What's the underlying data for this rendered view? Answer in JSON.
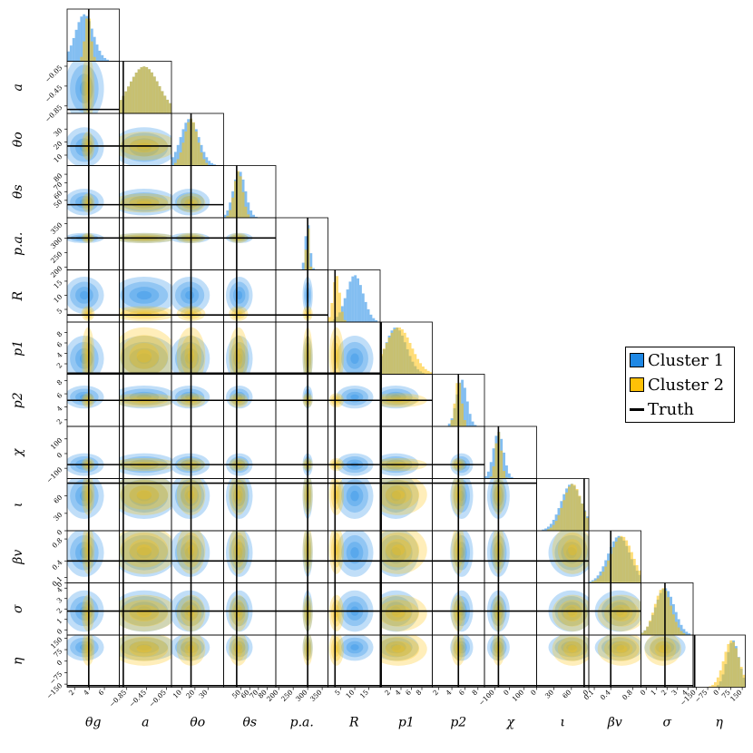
{
  "chart_data": {
    "type": "corner",
    "title": "",
    "colors": {
      "cluster1": "#1e88e5",
      "cluster2": "#ffc107",
      "truth": "#000000"
    },
    "legend": {
      "position": "right",
      "entries": [
        {
          "label": "Cluster 1",
          "kind": "patch",
          "color": "#1e88e5"
        },
        {
          "label": "Cluster 2",
          "kind": "patch",
          "color": "#ffc107"
        },
        {
          "label": "Truth",
          "kind": "line",
          "color": "#000000"
        }
      ]
    },
    "parameters": [
      {
        "label": "θg",
        "sub": "",
        "range": [
          1,
          8
        ],
        "truth": 3.9,
        "ticks": [
          "2",
          "4",
          "6"
        ],
        "tick_values": [
          2,
          4,
          6
        ],
        "c1": {
          "mean": 3.3,
          "sd": 1.2
        },
        "c2": {
          "mean": 3.8,
          "sd": 0.4
        }
      },
      {
        "label": "a",
        "sub": "",
        "range": [
          -1.0,
          0.05
        ],
        "truth": -0.92,
        "ticks": [
          "−0.85",
          "−0.45",
          "−0.05"
        ],
        "tick_values": [
          -0.85,
          -0.45,
          -0.05
        ],
        "c1": {
          "mean": -0.5,
          "sd": 0.3
        },
        "c2": {
          "mean": -0.5,
          "sd": 0.3
        }
      },
      {
        "label": "θo",
        "sub": "",
        "range": [
          2,
          42
        ],
        "truth": 17,
        "ticks": [
          "10",
          "20",
          "30"
        ],
        "tick_values": [
          10,
          20,
          30
        ],
        "c1": {
          "mean": 16,
          "sd": 7
        },
        "c2": {
          "mean": 17,
          "sd": 5
        }
      },
      {
        "label": "θs",
        "sub": "",
        "range": [
          30,
          90
        ],
        "truth": 45,
        "ticks": [
          "50",
          "60",
          "70",
          "80"
        ],
        "tick_values": [
          50,
          60,
          70,
          80
        ],
        "c1": {
          "mean": 48,
          "sd": 7
        },
        "c2": {
          "mean": 47,
          "sd": 5
        }
      },
      {
        "label": "p.a.",
        "sub": "",
        "range": [
          190,
          370
        ],
        "truth": 300,
        "ticks": [
          "200",
          "250",
          "300",
          "350"
        ],
        "tick_values": [
          200,
          250,
          300,
          350
        ],
        "c1": {
          "mean": 300,
          "sd": 8
        },
        "c2": {
          "mean": 300,
          "sd": 5
        }
      },
      {
        "label": "R",
        "sub": "",
        "range": [
          0.5,
          19
        ],
        "truth": 3.0,
        "ticks": [
          "5",
          "10",
          "15"
        ],
        "tick_values": [
          5,
          10,
          15
        ],
        "c1": {
          "mean": 10,
          "sd": 3
        },
        "c2": {
          "mean": 3.5,
          "sd": 1.2
        }
      },
      {
        "label": "p1",
        "sub": "",
        "range": [
          0,
          10
        ],
        "truth": 0.2,
        "ticks": [
          "2",
          "4",
          "6",
          "8"
        ],
        "tick_values": [
          2,
          4,
          6,
          8
        ],
        "c1": {
          "mean": 3,
          "sd": 2
        },
        "c2": {
          "mean": 3.5,
          "sd": 2.5
        }
      },
      {
        "label": "p2",
        "sub": "",
        "range": [
          1,
          9
        ],
        "truth": 5.0,
        "ticks": [
          "2",
          "4",
          "6",
          "8"
        ],
        "tick_values": [
          2,
          4,
          6,
          8
        ],
        "c1": {
          "mean": 5.5,
          "sd": 0.8
        },
        "c2": {
          "mean": 5.0,
          "sd": 0.5
        }
      },
      {
        "label": "χ",
        "sub": "",
        "range": [
          -170,
          185
        ],
        "truth": -75,
        "ticks": [
          "−100",
          "0",
          "100"
        ],
        "tick_values": [
          -100,
          0,
          100
        ],
        "c1": {
          "mean": -75,
          "sd": 35
        },
        "c2": {
          "mean": -75,
          "sd": 20
        }
      },
      {
        "label": "ι",
        "sub": "",
        "range": [
          0,
          90
        ],
        "truth": 82,
        "ticks": [
          "0",
          "30",
          "60"
        ],
        "tick_values": [
          0,
          30,
          60
        ],
        "c1": {
          "mean": 60,
          "sd": 18
        },
        "c2": {
          "mean": 62,
          "sd": 16
        }
      },
      {
        "label": "βv",
        "sub": "",
        "range": [
          0,
          0.95
        ],
        "truth": 0.4,
        "ticks": [
          "0",
          "0.1",
          "0.4",
          "0.8"
        ],
        "tick_values": [
          0,
          0.1,
          0.4,
          0.8
        ],
        "c1": {
          "mean": 0.55,
          "sd": 0.2
        },
        "c2": {
          "mean": 0.6,
          "sd": 0.2
        }
      },
      {
        "label": "σ",
        "sub": "",
        "range": [
          -0.5,
          4.5
        ],
        "truth": 1.8,
        "ticks": [
          "0",
          "1",
          "2",
          "3",
          "4"
        ],
        "tick_values": [
          0,
          1,
          2,
          3,
          4
        ],
        "c1": {
          "mean": 1.8,
          "sd": 0.9
        },
        "c2": {
          "mean": 1.6,
          "sd": 0.8
        }
      },
      {
        "label": "η",
        "sub": "",
        "range": [
          -170,
          170
        ],
        "truth": -160,
        "ticks": [
          "−150",
          "−75",
          "0",
          "75",
          "150"
        ],
        "tick_values": [
          -150,
          -75,
          0,
          75,
          150
        ],
        "c1": {
          "mean": 90,
          "sd": 40
        },
        "c2": {
          "mean": 80,
          "sd": 50
        }
      }
    ]
  }
}
